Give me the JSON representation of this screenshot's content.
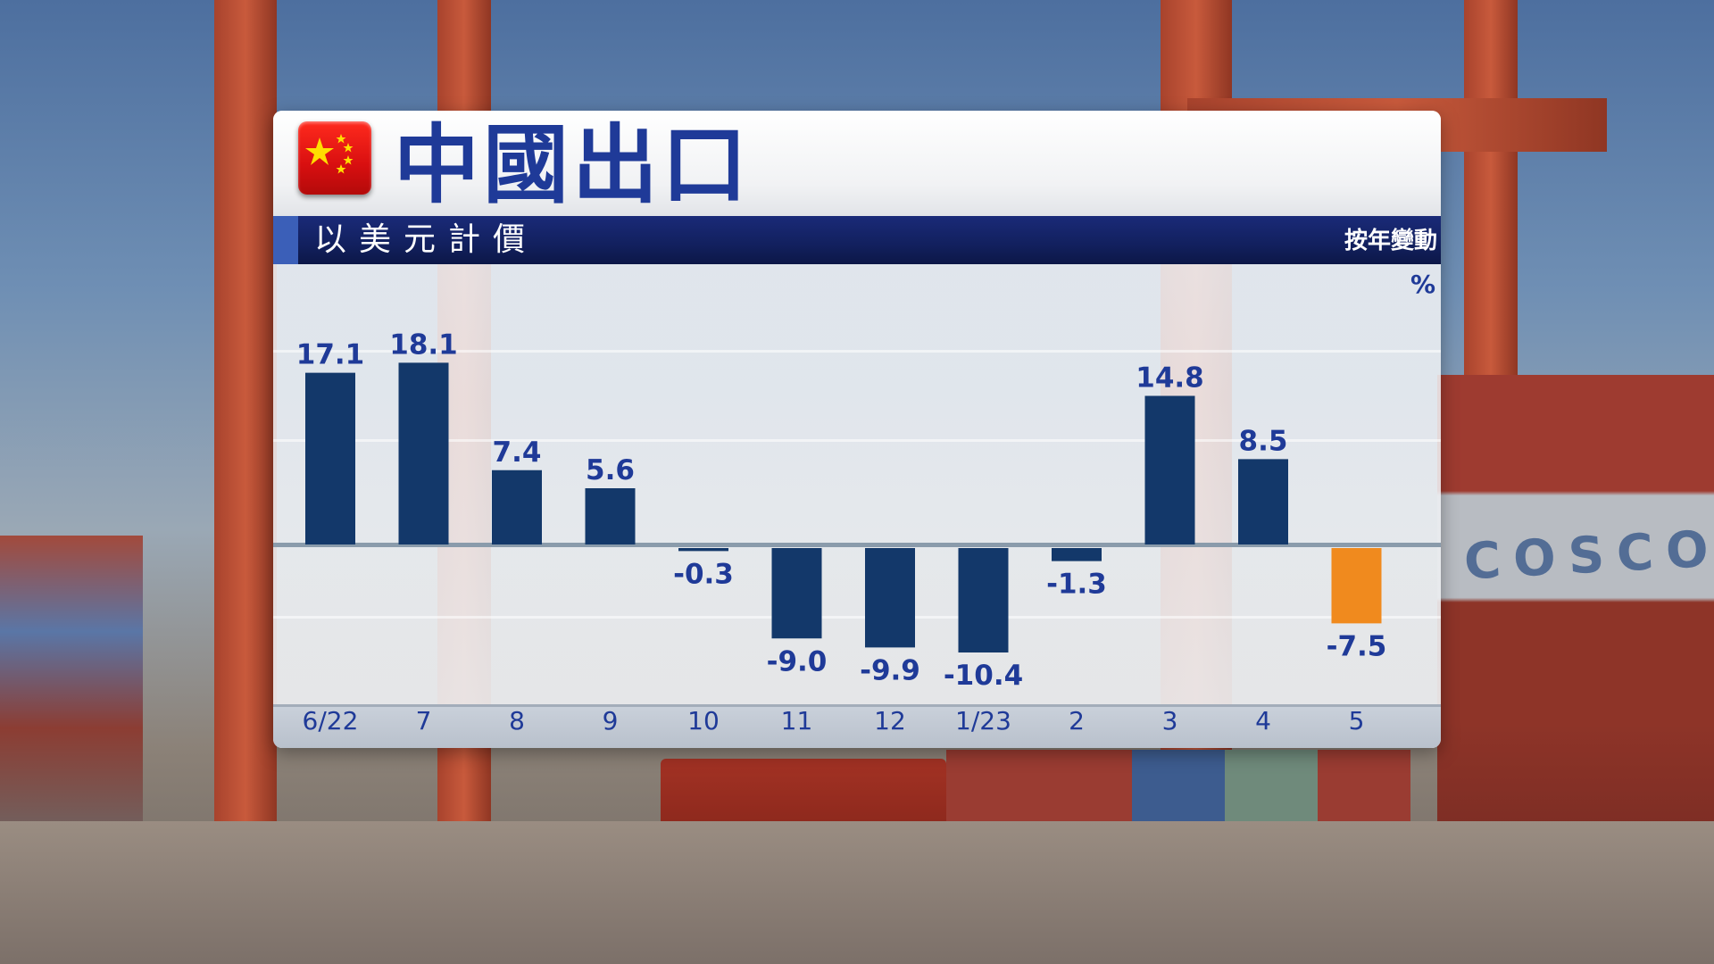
{
  "title": "中國出口",
  "subtitle": "以美元計價",
  "change_label": "按年變動",
  "unit": "%",
  "colors": {
    "bar": "#13386a",
    "highlight": "#f08a1e",
    "title": "#1f3a98",
    "band": "#12205e"
  },
  "background": {
    "container_text": "COSCO"
  },
  "chart_data": {
    "type": "bar",
    "categories": [
      "6/22",
      "7",
      "8",
      "9",
      "10",
      "11",
      "12",
      "1/23",
      "2",
      "3",
      "4",
      "5"
    ],
    "values": [
      17.1,
      18.1,
      7.4,
      5.6,
      -0.3,
      -9.0,
      -9.9,
      -10.4,
      -1.3,
      14.8,
      8.5,
      -7.5
    ],
    "value_labels": [
      "17.1",
      "18.1",
      "7.4",
      "5.6",
      "-0.3",
      "-9.0",
      "-9.9",
      "-10.4",
      "-1.3",
      "14.8",
      "8.5",
      "-7.5"
    ],
    "highlight_index": 11,
    "ylim": [
      -14,
      24
    ],
    "grid": true,
    "legend": "none"
  }
}
